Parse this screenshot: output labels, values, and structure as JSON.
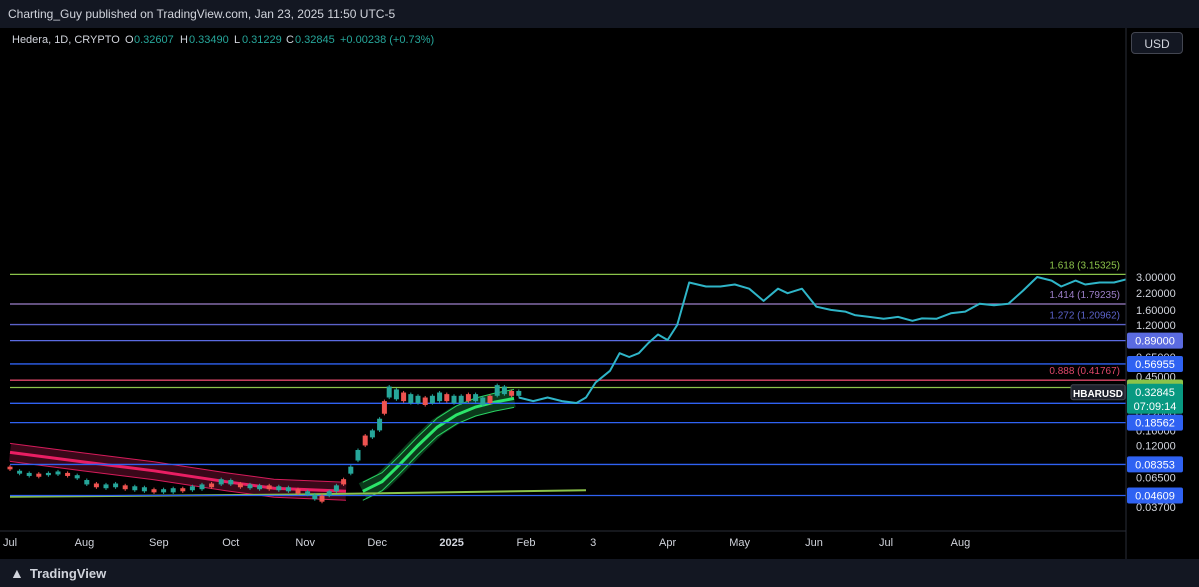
{
  "header": {
    "publisher_text": "Charting_Guy published on TradingView.com, Jan 23, 2025 11:50 UTC-5"
  },
  "footer": {
    "logo_text": "TradingView"
  },
  "legend": {
    "symbol": "Hedera, 1D, CRYPTO",
    "open_label": "O",
    "open": "0.32607",
    "high_label": "H",
    "high": "0.33490",
    "low_label": "L",
    "low": "0.31229",
    "close_label": "C",
    "close": "0.32845",
    "change": "+0.00238 (+0.73%)"
  },
  "currency_button": "USD",
  "chart_data": {
    "type": "line",
    "scale": "log",
    "grid": false,
    "ylim": [
      0.035,
      3.6
    ],
    "y_ticks": [
      "3.00000",
      "2.20000",
      "1.60000",
      "1.20000",
      "0.65000",
      "0.45000",
      "0.22000",
      "0.16000",
      "0.12000",
      "0.08000",
      "0.06500",
      "0.04800",
      "0.03700"
    ],
    "y_tick_values": [
      3.0,
      2.2,
      1.6,
      1.2,
      0.65,
      0.45,
      0.22,
      0.16,
      0.12,
      0.08,
      0.065,
      0.048,
      0.037
    ],
    "x_ticks": [
      "Jul",
      "Aug",
      "Sep",
      "Oct",
      "Nov",
      "Dec",
      "2025",
      "Feb",
      "3",
      "Apr",
      "May",
      "Jun",
      "Jul",
      "Aug"
    ],
    "x_tick_days": [
      0,
      31,
      62,
      92,
      123,
      153,
      184,
      215,
      243,
      274,
      304,
      335,
      365,
      396
    ],
    "x_ticks_bold": [
      "2025"
    ],
    "horizontal_levels": [
      {
        "value": 3.15325,
        "label": "1.618 (3.15325)",
        "color": "#8bc34a",
        "style": "text"
      },
      {
        "value": 1.79235,
        "label": "1.414 (1.79235)",
        "color": "#9c7fc9",
        "style": "text"
      },
      {
        "value": 1.20962,
        "label": "1.272 (1.20962)",
        "color": "#5b62c9",
        "style": "text"
      },
      {
        "value": 0.89,
        "label": "0.89000",
        "color": "#5b6be0",
        "style": "tag"
      },
      {
        "value": 0.56955,
        "label": "0.56955",
        "color": "#2f62f2",
        "style": "tag"
      },
      {
        "value": 0.41767,
        "label": "0.888 (0.41767)",
        "color": "#e0476a",
        "style": "text"
      },
      {
        "value": 0.36296,
        "label": "0.36296",
        "color": "#8bc34a",
        "style": "tag"
      },
      {
        "value": 0.26847,
        "label": "0.26847",
        "color": "#2f62f2",
        "style": "tag"
      },
      {
        "value": 0.18562,
        "label": "0.18562",
        "color": "#2f62f2",
        "style": "tag"
      },
      {
        "value": 0.08353,
        "label": "0.08353",
        "color": "#2f62f2",
        "style": "tag"
      },
      {
        "value": 0.04609,
        "label": "0.04609",
        "color": "#2f62f2",
        "style": "tag"
      }
    ],
    "price_label": {
      "symbol": "HBARUSD",
      "value": "0.32845",
      "countdown": "07:09:14",
      "price": 0.32845,
      "color": "#089981"
    },
    "candles": [
      [
        0,
        0.08,
        0.076
      ],
      [
        4,
        0.074,
        0.07
      ],
      [
        8,
        0.071,
        0.067
      ],
      [
        12,
        0.07,
        0.066
      ],
      [
        16,
        0.071,
        0.068
      ],
      [
        20,
        0.073,
        0.069
      ],
      [
        24,
        0.071,
        0.067
      ],
      [
        28,
        0.068,
        0.064
      ],
      [
        32,
        0.062,
        0.057
      ],
      [
        36,
        0.058,
        0.054
      ],
      [
        40,
        0.057,
        0.053
      ],
      [
        44,
        0.058,
        0.054
      ],
      [
        48,
        0.056,
        0.052
      ],
      [
        52,
        0.055,
        0.051
      ],
      [
        56,
        0.054,
        0.05
      ],
      [
        60,
        0.052,
        0.049
      ],
      [
        64,
        0.052,
        0.049
      ],
      [
        68,
        0.053,
        0.049
      ],
      [
        72,
        0.053,
        0.05
      ],
      [
        76,
        0.055,
        0.051
      ],
      [
        80,
        0.057,
        0.052
      ],
      [
        84,
        0.058,
        0.054
      ],
      [
        88,
        0.063,
        0.057
      ],
      [
        92,
        0.062,
        0.057
      ],
      [
        96,
        0.058,
        0.054
      ],
      [
        100,
        0.057,
        0.053
      ],
      [
        104,
        0.056,
        0.052
      ],
      [
        108,
        0.056,
        0.052
      ],
      [
        112,
        0.055,
        0.051
      ],
      [
        116,
        0.054,
        0.05
      ],
      [
        120,
        0.052,
        0.048
      ],
      [
        124,
        0.05,
        0.047
      ],
      [
        127,
        0.047,
        0.043
      ],
      [
        130,
        0.046,
        0.041
      ],
      [
        133,
        0.05,
        0.046
      ],
      [
        136,
        0.056,
        0.05
      ],
      [
        139,
        0.063,
        0.057
      ],
      [
        142,
        0.08,
        0.07
      ],
      [
        145,
        0.11,
        0.09
      ],
      [
        148,
        0.145,
        0.12
      ],
      [
        151,
        0.16,
        0.14
      ],
      [
        154,
        0.2,
        0.16
      ],
      [
        156,
        0.28,
        0.22
      ],
      [
        158,
        0.37,
        0.3
      ],
      [
        161,
        0.35,
        0.29
      ],
      [
        164,
        0.33,
        0.28
      ],
      [
        167,
        0.32,
        0.27
      ],
      [
        170,
        0.31,
        0.27
      ],
      [
        173,
        0.3,
        0.26
      ],
      [
        176,
        0.31,
        0.27
      ],
      [
        179,
        0.33,
        0.28
      ],
      [
        182,
        0.32,
        0.28
      ],
      [
        185,
        0.31,
        0.27
      ],
      [
        188,
        0.31,
        0.27
      ],
      [
        191,
        0.32,
        0.28
      ],
      [
        194,
        0.32,
        0.28
      ],
      [
        197,
        0.3,
        0.26
      ],
      [
        200,
        0.31,
        0.27
      ],
      [
        203,
        0.38,
        0.31
      ],
      [
        206,
        0.37,
        0.32
      ],
      [
        209,
        0.34,
        0.31
      ],
      [
        212,
        0.34,
        0.31
      ]
    ],
    "series": [
      {
        "name": "",
        "color": "#2fb5c8",
        "points": [
          [
            212,
            0.3
          ],
          [
            218,
            0.28
          ],
          [
            224,
            0.3
          ],
          [
            230,
            0.28
          ],
          [
            236,
            0.27
          ],
          [
            240,
            0.3
          ],
          [
            244,
            0.4
          ],
          [
            250,
            0.5
          ],
          [
            254,
            0.7
          ],
          [
            258,
            0.65
          ],
          [
            262,
            0.7
          ],
          [
            266,
            0.85
          ],
          [
            270,
            1.0
          ],
          [
            274,
            0.9
          ],
          [
            278,
            1.2
          ],
          [
            283,
            2.7
          ],
          [
            290,
            2.5
          ],
          [
            296,
            2.5
          ],
          [
            302,
            2.6
          ],
          [
            308,
            2.4
          ],
          [
            314,
            1.9
          ],
          [
            320,
            2.4
          ],
          [
            324,
            2.2
          ],
          [
            330,
            2.4
          ],
          [
            336,
            1.7
          ],
          [
            342,
            1.6
          ],
          [
            348,
            1.55
          ],
          [
            352,
            1.45
          ],
          [
            358,
            1.4
          ],
          [
            364,
            1.35
          ],
          [
            370,
            1.4
          ],
          [
            376,
            1.3
          ],
          [
            380,
            1.36
          ],
          [
            386,
            1.35
          ],
          [
            392,
            1.5
          ],
          [
            398,
            1.55
          ],
          [
            404,
            1.8
          ],
          [
            410,
            1.75
          ],
          [
            416,
            1.8
          ],
          [
            422,
            2.3
          ],
          [
            428,
            3.0
          ],
          [
            434,
            2.8
          ],
          [
            438,
            2.5
          ],
          [
            444,
            2.8
          ],
          [
            448,
            2.6
          ],
          [
            454,
            2.7
          ],
          [
            460,
            2.7
          ],
          [
            466,
            2.9
          ],
          [
            472,
            2.85
          ],
          [
            478,
            3.15
          ]
        ]
      }
    ],
    "indicator_bands": [
      {
        "name": "",
        "color": "#e91e63",
        "points": [
          [
            0,
            0.105
          ],
          [
            30,
            0.088
          ],
          [
            60,
            0.074
          ],
          [
            90,
            0.06
          ],
          [
            110,
            0.053
          ],
          [
            130,
            0.051
          ],
          [
            140,
            0.05
          ]
        ]
      },
      {
        "name": "",
        "color": "#2ce66a",
        "points": [
          [
            147,
            0.05
          ],
          [
            155,
            0.06
          ],
          [
            162,
            0.082
          ],
          [
            170,
            0.12
          ],
          [
            178,
            0.17
          ],
          [
            186,
            0.215
          ],
          [
            194,
            0.25
          ],
          [
            202,
            0.275
          ],
          [
            210,
            0.295
          ]
        ]
      },
      {
        "name": "",
        "color": "#8bc34a",
        "points": [
          [
            0,
            0.045
          ],
          [
            120,
            0.047
          ],
          [
            240,
            0.051
          ]
        ]
      }
    ]
  }
}
